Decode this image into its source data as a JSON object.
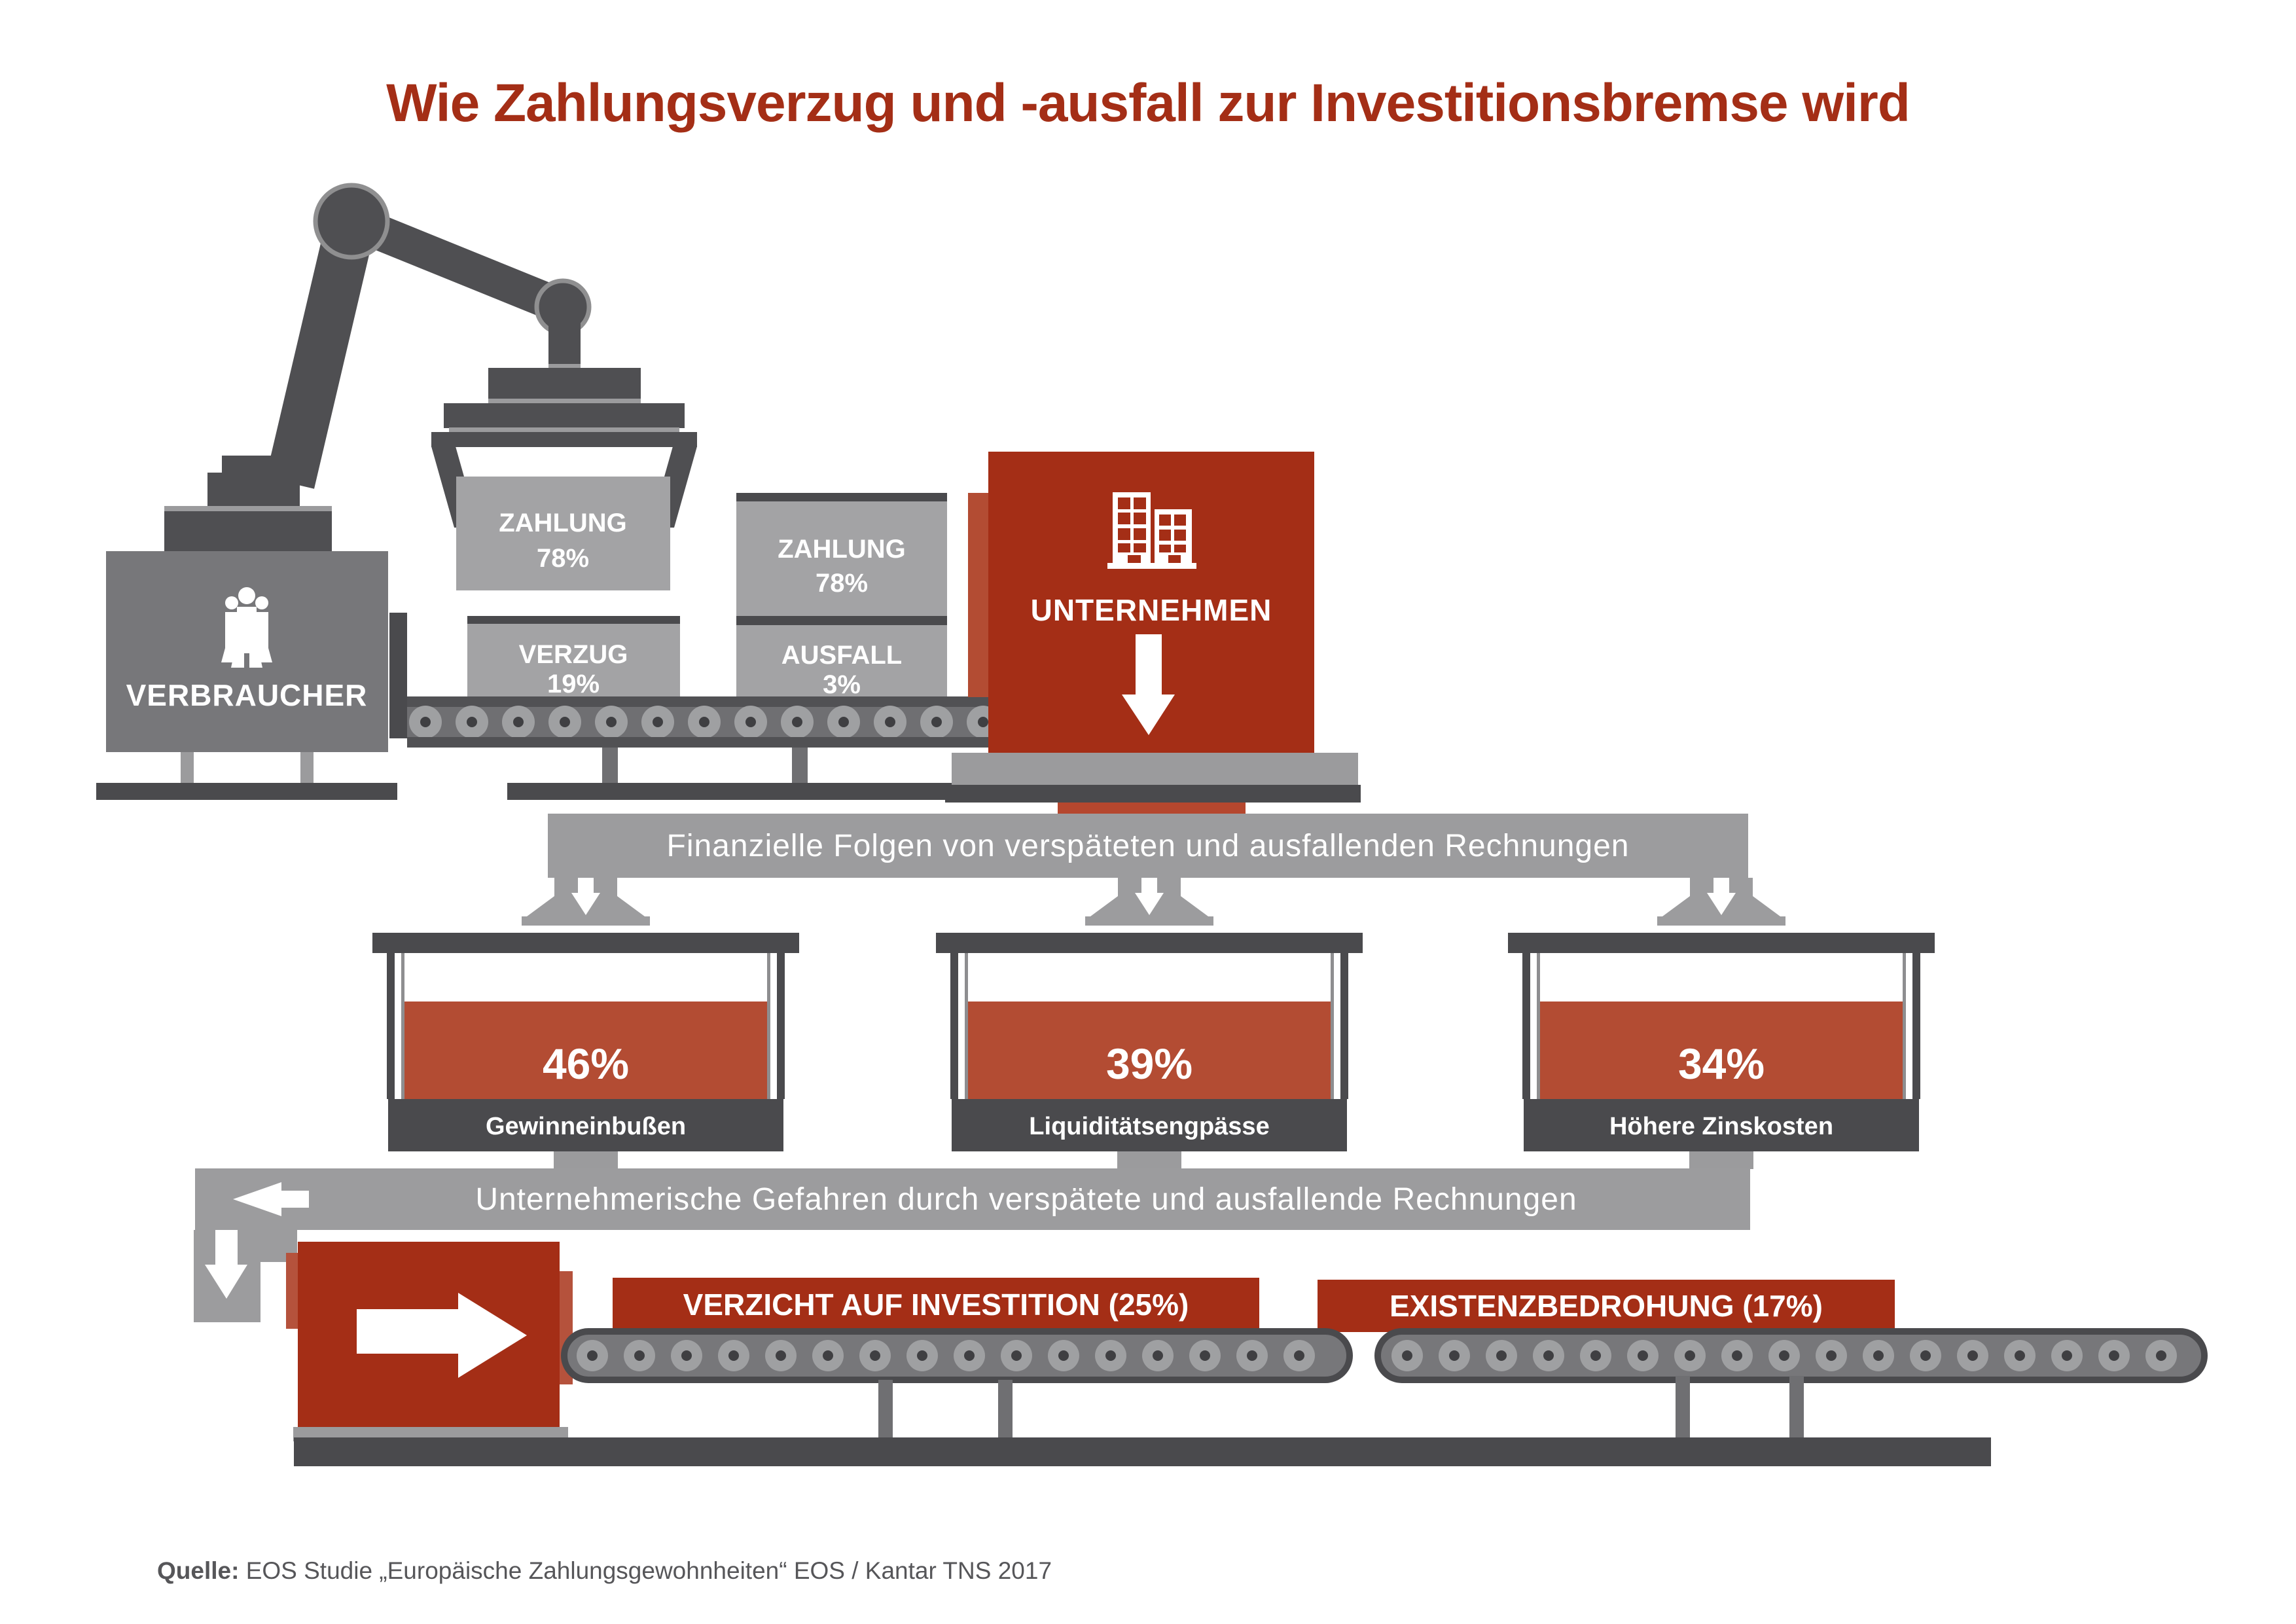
{
  "title": "Wie Zahlungsverzug und -ausfall zur Investitionsbremse wird",
  "machine": {
    "consumer_label": "VERBRAUCHER",
    "company_label": "UNTERNEHMEN"
  },
  "conveyor_boxes": {
    "crane_box": {
      "label": "ZAHLUNG",
      "value": "78%"
    },
    "box_verzug": {
      "label": "VERZUG",
      "value": "19%"
    },
    "box_zahlung": {
      "label": "ZAHLUNG",
      "value": "78%"
    },
    "box_ausfall": {
      "label": "AUSFALL",
      "value": "3%"
    }
  },
  "banner_financial": "Finanzielle Folgen von verspäteten und ausfallenden Rechnungen",
  "containers": [
    {
      "value": "46%",
      "label": "Gewinneinbußen"
    },
    {
      "value": "39%",
      "label": "Liquiditätsengpässe"
    },
    {
      "value": "34%",
      "label": "Höhere Zinskosten"
    }
  ],
  "banner_risks": "Unternehmerische Gefahren durch verspätete und ausfallende Rechnungen",
  "outcomes": [
    {
      "label": "VERZICHT AUF INVESTITION (25%)"
    },
    {
      "label": "EXISTENZBEDROHUNG (17%)"
    }
  ],
  "source": {
    "prefix": "Quelle:",
    "text": " EOS Studie „Europäische Zahlungsgewohnheiten“ EOS / Kantar TNS 2017"
  },
  "colors": {
    "brand_red": "#A42E16",
    "accent_red": "#B34C33",
    "banner_gray": "#9C9C9E",
    "dark_gray": "#4A4A4D",
    "machine_gray": "#4F4F52",
    "consumer_gray": "#77777A",
    "box_gray": "#A3A3A5",
    "light_gray": "#9B9B9D"
  }
}
